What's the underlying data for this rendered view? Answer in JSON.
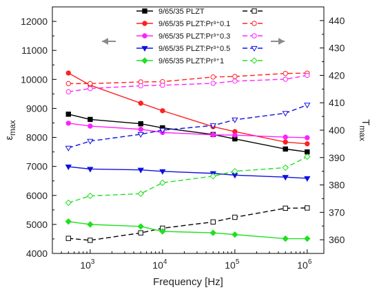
{
  "chart_data": {
    "type": "line",
    "xlabel": "Frequency [Hz]",
    "x_scale": "log",
    "xlim": [
      300,
      1700000
    ],
    "x_ticks": [
      {
        "value": 1000,
        "base": "10",
        "exp": "3"
      },
      {
        "value": 10000,
        "base": "10",
        "exp": "4"
      },
      {
        "value": 100000,
        "base": "10",
        "exp": "5"
      },
      {
        "value": 1000000,
        "base": "10",
        "exp": "6"
      }
    ],
    "y_left": {
      "label_main": "ε",
      "label_sub": "max",
      "lim": [
        4000,
        12500
      ],
      "ticks": [
        4000,
        5000,
        6000,
        7000,
        8000,
        9000,
        10000,
        11000,
        12000
      ]
    },
    "y_right": {
      "label_main": "T",
      "label_sub": "max",
      "lim": [
        355,
        445
      ],
      "ticks": [
        360,
        370,
        380,
        390,
        400,
        410,
        420,
        430,
        440
      ]
    },
    "legend_placement": "top-center",
    "arrows": [
      "left",
      "right"
    ],
    "x": [
      500,
      1000,
      5000,
      10000,
      50000,
      100000,
      500000,
      1000000
    ],
    "series": [
      {
        "name": "9/65/35 PLZT",
        "color": "#000000",
        "marker": "square",
        "eps": [
          8800,
          8620,
          8470,
          8330,
          8100,
          7950,
          7600,
          7500
        ],
        "tmax": [
          360.5,
          359.8,
          362.5,
          364.2,
          366.5,
          368.2,
          371.5,
          371.6
        ]
      },
      {
        "name": "9/65/35 PLZT:Pr³⁺0.1",
        "color": "#ff2020",
        "marker": "circle",
        "eps": [
          10220,
          9800,
          9180,
          8920,
          8370,
          8200,
          7840,
          7780
        ],
        "tmax": [
          417.0,
          417.0,
          417.6,
          417.7,
          419.4,
          419.6,
          420.7,
          420.8
        ]
      },
      {
        "name": "9/65/35 PLZT:Pr³⁺0.3",
        "color": "#ff20ff",
        "marker": "circle",
        "eps": [
          8490,
          8390,
          8280,
          8170,
          8090,
          8080,
          8010,
          7990
        ],
        "tmax": [
          414.0,
          415.2,
          416.2,
          416.4,
          417.1,
          417.9,
          418.6,
          420.0
        ]
      },
      {
        "name": "9/65/35 PLZT:Pr³⁺0.5",
        "color": "#1010e0",
        "marker": "triangle-down",
        "eps": [
          6990,
          6910,
          6880,
          6830,
          6760,
          6700,
          6630,
          6590
        ],
        "tmax": [
          393.5,
          396.0,
          398.5,
          400.0,
          401.7,
          403.8,
          406.2,
          409.2
        ]
      },
      {
        "name": "9/65/35 PLZT:Pr³⁺1",
        "color": "#20e020",
        "marker": "diamond",
        "eps": [
          5100,
          5000,
          4930,
          4760,
          4710,
          4650,
          4510,
          4510
        ],
        "tmax": [
          373.5,
          376.0,
          376.8,
          380.8,
          383.2,
          385.0,
          386.3,
          390.3
        ]
      }
    ]
  }
}
